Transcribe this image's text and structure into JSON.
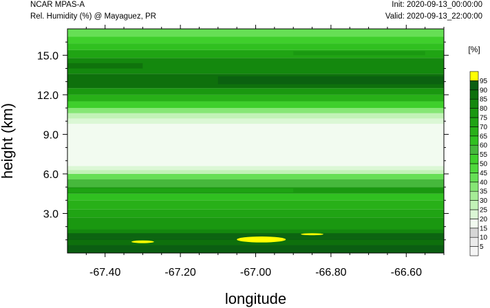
{
  "header": {
    "model": "NCAR MPAS-A",
    "field": "Rel. Humidity (%) @ Mayaguez, PR",
    "init": "Init: 2020-09-13_00:00:00",
    "valid": "Valid: 2020-09-13_22:00:00"
  },
  "chart_data": {
    "type": "heatmap",
    "title": "Rel. Humidity (%) @ Mayaguez, PR",
    "xlabel": "longitude",
    "ylabel": "height (km)",
    "xlim": [
      -67.5,
      -66.5
    ],
    "ylim": [
      0,
      17
    ],
    "x_ticks": [
      -67.4,
      -67.2,
      -67.0,
      -66.8,
      -66.6
    ],
    "x_tick_labels": [
      "-67.40",
      "-67.20",
      "-67.00",
      "-66.80",
      "-66.60"
    ],
    "y_ticks": [
      3,
      6,
      9,
      12,
      15
    ],
    "y_tick_labels": [
      "3.0",
      "6.0",
      "9.0",
      "12.0",
      "15.0"
    ],
    "colorbar": {
      "unit_label": "[%]",
      "levels": [
        5,
        10,
        15,
        20,
        25,
        30,
        35,
        40,
        45,
        50,
        55,
        60,
        65,
        70,
        75,
        80,
        85,
        90,
        95
      ],
      "colors": [
        "#f5f5f5",
        "#ebebeb",
        "#d6d6d6",
        "#f2fbf0",
        "#dbf7d5",
        "#c2f2b7",
        "#a6ec97",
        "#86e675",
        "#66df55",
        "#4fd83c",
        "#3fcf2c",
        "#46b83c",
        "#30c020",
        "#28b018",
        "#20a414",
        "#1a9810",
        "#14880e",
        "#0e700c",
        "#0b5e12",
        "#ffff00"
      ]
    },
    "layers": [
      {
        "z0": 0.0,
        "z1": 0.6,
        "rh": 90
      },
      {
        "z0": 0.6,
        "z1": 1.1,
        "rh": 85
      },
      {
        "z0": 1.1,
        "z1": 1.8,
        "rh": 80
      },
      {
        "z0": 1.8,
        "z1": 2.7,
        "rh": 75
      },
      {
        "z0": 2.7,
        "z1": 3.3,
        "rh": 70
      },
      {
        "z0": 3.3,
        "z1": 4.0,
        "rh": 65
      },
      {
        "z0": 4.0,
        "z1": 4.5,
        "rh": 60
      },
      {
        "z0": 4.5,
        "z1": 5.0,
        "rh": 75
      },
      {
        "z0": 5.0,
        "z1": 5.6,
        "rh": 55
      },
      {
        "z0": 5.6,
        "z1": 6.0,
        "rh": 40
      },
      {
        "z0": 6.0,
        "z1": 6.3,
        "rh": 25
      },
      {
        "z0": 6.3,
        "z1": 6.6,
        "rh": 20
      },
      {
        "z0": 6.6,
        "z1": 9.8,
        "rh": 15
      },
      {
        "z0": 9.8,
        "z1": 10.2,
        "rh": 20
      },
      {
        "z0": 10.2,
        "z1": 10.6,
        "rh": 25
      },
      {
        "z0": 10.6,
        "z1": 11.0,
        "rh": 35
      },
      {
        "z0": 11.0,
        "z1": 11.5,
        "rh": 50
      },
      {
        "z0": 11.5,
        "z1": 12.0,
        "rh": 65
      },
      {
        "z0": 12.0,
        "z1": 12.5,
        "rh": 75
      },
      {
        "z0": 12.5,
        "z1": 13.6,
        "rh": 85
      },
      {
        "z0": 13.6,
        "z1": 14.8,
        "rh": 80
      },
      {
        "z0": 14.8,
        "z1": 15.4,
        "rh": 70
      },
      {
        "z0": 15.4,
        "z1": 15.9,
        "rh": 60
      },
      {
        "z0": 15.9,
        "z1": 16.4,
        "rh": 50
      },
      {
        "z0": 16.4,
        "z1": 17.0,
        "rh": 40
      }
    ],
    "features": [
      {
        "x0": -67.5,
        "x1": -66.5,
        "z0": 1.0,
        "z1": 1.5,
        "rh": 90
      },
      {
        "x0": -67.05,
        "x1": -66.92,
        "z0": 0.8,
        "z1": 1.25,
        "rh": 95
      },
      {
        "x0": -67.33,
        "x1": -67.27,
        "z0": 0.75,
        "z1": 0.95,
        "rh": 95
      },
      {
        "x0": -66.88,
        "x1": -66.82,
        "z0": 1.35,
        "z1": 1.5,
        "rh": 95
      },
      {
        "x0": -67.5,
        "x1": -66.9,
        "z0": 4.6,
        "z1": 4.9,
        "rh": 70
      },
      {
        "x0": -67.1,
        "x1": -66.5,
        "z0": 12.8,
        "z1": 13.4,
        "rh": 90
      },
      {
        "x0": -67.5,
        "x1": -67.3,
        "z0": 14.0,
        "z1": 14.4,
        "rh": 85
      },
      {
        "x0": -66.9,
        "x1": -66.55,
        "z0": 15.0,
        "z1": 15.3,
        "rh": 75
      }
    ]
  }
}
